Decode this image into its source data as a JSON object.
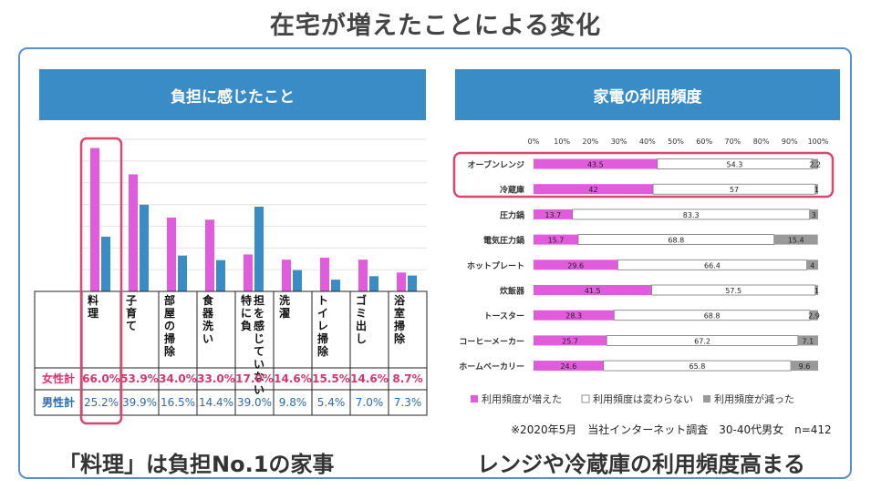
{
  "page": {
    "title": "在宅が増えたことによる変化",
    "caption_left": "「料理」は負担No.1の家事",
    "caption_right": "レンジや冷蔵庫の利用頻度高まる",
    "note": "※2020年5月　当社インターネット調査　30-40代男女　n=412"
  },
  "colors": {
    "female": "#e05cdc",
    "male": "#3a8cc6",
    "increased": "#e05cdc",
    "unchanged": "#ffffff",
    "decreased": "#999999",
    "highlight": "#d9466f",
    "female_label": "#d9346a",
    "male_label": "#2b6cb0"
  },
  "chart_data": [
    {
      "type": "bar",
      "title": "負担に感じたこと",
      "categories": [
        "料理",
        "子育て",
        "部屋の掃除",
        "食器洗い",
        "特に負担を感じていない",
        "洗濯",
        "トイレ掃除",
        "ゴミ出し",
        "浴室掃除"
      ],
      "series": [
        {
          "name": "女性計",
          "values": [
            66.0,
            53.9,
            34.0,
            33.0,
            17.0,
            14.6,
            15.5,
            14.6,
            8.7
          ],
          "labels": [
            "66.0%",
            "53.9%",
            "34.0%",
            "33.0%",
            "17.0%",
            "14.6%",
            "15.5%",
            "14.6%",
            "8.7%"
          ]
        },
        {
          "name": "男性計",
          "values": [
            25.2,
            39.9,
            16.5,
            14.4,
            39.0,
            9.8,
            5.4,
            7.0,
            7.3
          ],
          "labels": [
            "25.2%",
            "39.9%",
            "16.5%",
            "14.4%",
            "39.0%",
            "9.8%",
            "5.4%",
            "7.0%",
            "7.3%"
          ]
        }
      ],
      "ylim": [
        0,
        70
      ],
      "grid": true,
      "highlight_category": "料理"
    },
    {
      "type": "bar",
      "orientation": "horizontal",
      "stacked": true,
      "title": "家電の利用頻度",
      "categories": [
        "オーブンレンジ",
        "冷蔵庫",
        "圧力鍋",
        "電気圧力鍋",
        "ホットプレート",
        "炊飯器",
        "トースター",
        "コーヒーメーカー",
        "ホームベーカリー"
      ],
      "series": [
        {
          "name": "利用頻度が増えた",
          "values": [
            43.5,
            42,
            13.7,
            15.7,
            29.6,
            41.5,
            28.3,
            25.7,
            24.6
          ],
          "labels": [
            "43.5",
            "42",
            "13.7",
            "15.7",
            "29.6",
            "41.5",
            "28.3",
            "25.7",
            "24.6"
          ]
        },
        {
          "name": "利用頻度は変わらない",
          "values": [
            54.3,
            57,
            83.3,
            68.8,
            66.4,
            57.5,
            68.8,
            67.2,
            65.8
          ],
          "labels": [
            "54.3",
            "57",
            "83.3",
            "68.8",
            "66.4",
            "57.5",
            "68.8",
            "67.2",
            "65.8"
          ]
        },
        {
          "name": "利用頻度が減った",
          "values": [
            2.2,
            1,
            3,
            15.4,
            4,
            1,
            2.9,
            7.1,
            9.6
          ],
          "labels": [
            "2.2",
            "1",
            "3",
            "15.4",
            "4",
            "1",
            "2.9",
            "7.1",
            "9.6"
          ]
        }
      ],
      "xlim": [
        0,
        100
      ],
      "xticks": [
        "0%",
        "10%",
        "20%",
        "30%",
        "40%",
        "50%",
        "60%",
        "70%",
        "80%",
        "90%",
        "100%"
      ],
      "legend": "bottom",
      "highlight_categories": [
        "オーブンレンジ",
        "冷蔵庫"
      ]
    }
  ]
}
